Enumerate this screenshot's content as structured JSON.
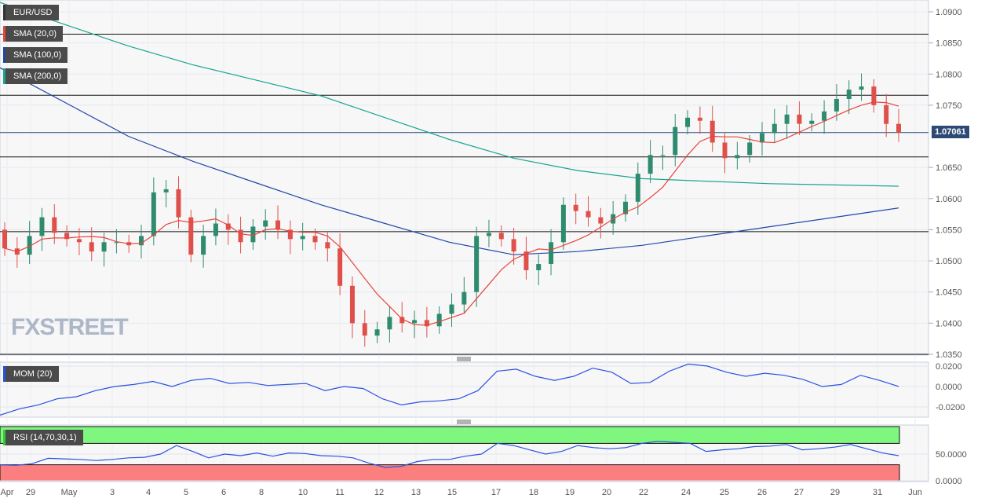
{
  "legend": {
    "symbol": "EUR/USD",
    "sma20": "SMA (20,0)",
    "sma100": "SMA (100,0)",
    "sma200": "SMA (200,0)",
    "mom": "MOM (20)",
    "rsi": "RSI (14,70,30,1)"
  },
  "colors": {
    "up": "#2e8b6e",
    "down": "#e0504a",
    "sma20": "#e8443a",
    "sma100": "#2046a8",
    "sma200": "#1aa58f",
    "mom": "#2a52e0",
    "rsi": "#2a52e0",
    "price_tag": "#2c4a75",
    "rsi_high": "#7ff77f",
    "rsi_low": "#fc7f7f"
  },
  "watermark": "FXSTREET",
  "chart_data": {
    "type": "candlestick",
    "title": "EUR/USD",
    "ylim": [
      1.035,
      1.09
    ],
    "y_ticks": [
      "1.0900",
      "1.0850",
      "1.0800",
      "1.0750",
      "1.0650",
      "1.0600",
      "1.0550",
      "1.0500",
      "1.0450",
      "1.0400",
      "1.0350"
    ],
    "last_price": "1.07061",
    "horizontal_levels": [
      1.0864,
      1.0766,
      1.07061,
      1.0667,
      1.0547,
      1.035
    ],
    "x_labels": [
      "Apr",
      "29",
      "May",
      "3",
      "4",
      "5",
      "6",
      "8",
      "10",
      "11",
      "12",
      "13",
      "15",
      "17",
      "18",
      "19",
      "20",
      "22",
      "24",
      "25",
      "26",
      "27",
      "29",
      "31",
      "Jun"
    ],
    "closes": [
      1.052,
      1.051,
      1.054,
      1.057,
      1.0545,
      1.0535,
      1.053,
      1.0515,
      1.053,
      1.053,
      1.0525,
      1.054,
      1.061,
      1.0615,
      1.057,
      1.051,
      1.054,
      1.056,
      1.055,
      1.053,
      1.0555,
      1.0565,
      1.055,
      1.0535,
      1.054,
      1.053,
      1.052,
      1.046,
      1.04,
      1.038,
      1.039,
      1.041,
      1.04,
      1.0405,
      1.0395,
      1.0415,
      1.043,
      1.045,
      1.054,
      1.0545,
      1.0535,
      1.0515,
      1.0485,
      1.0495,
      1.053,
      1.059,
      1.058,
      1.057,
      1.056,
      1.0575,
      1.0595,
      1.064,
      1.067,
      1.067,
      1.0715,
      1.073,
      1.0725,
      1.069,
      1.0665,
      1.067,
      1.069,
      1.0705,
      1.072,
      1.0735,
      1.072,
      1.0725,
      1.074,
      1.076,
      1.0775,
      1.078,
      1.075,
      1.072,
      1.0706
    ],
    "sma100": [
      1.081,
      1.0755,
      1.07,
      1.066,
      1.0625,
      1.059,
      1.056,
      1.053,
      1.051,
      1.0515,
      1.0525,
      1.054,
      1.0555,
      1.057,
      1.0585
    ],
    "sma200": [
      1.0915,
      1.088,
      1.0845,
      1.0815,
      1.079,
      1.0765,
      1.073,
      1.0695,
      1.0665,
      1.0645,
      1.0632,
      1.0628,
      1.0624,
      1.0622,
      1.062
    ],
    "mom": {
      "ylim": [
        -0.03,
        0.025
      ],
      "ticks": [
        "0.0200",
        "0.0000",
        "-0.0200"
      ],
      "values": [
        -0.028,
        -0.022,
        -0.018,
        -0.012,
        -0.01,
        -0.004,
        0.0,
        0.002,
        0.005,
        0.0,
        0.006,
        0.008,
        0.003,
        0.004,
        0.001,
        0.002,
        0.003,
        -0.004,
        0.0,
        -0.002,
        -0.012,
        -0.018,
        -0.015,
        -0.014,
        -0.012,
        -0.004,
        0.015,
        0.017,
        0.01,
        0.006,
        0.01,
        0.018,
        0.014,
        0.003,
        0.004,
        0.015,
        0.022,
        0.02,
        0.014,
        0.01,
        0.013,
        0.011,
        0.007,
        0.0,
        0.002,
        0.011,
        0.006,
        0.0
      ]
    },
    "rsi": {
      "ylim": [
        0,
        100
      ],
      "overbought": 70,
      "oversold": 30,
      "ticks": [
        "50.0000",
        "0.0000"
      ],
      "values": [
        30,
        29,
        32,
        42,
        41,
        40,
        38,
        40,
        43,
        44,
        50,
        66,
        55,
        43,
        50,
        47,
        52,
        46,
        52,
        51,
        47,
        46,
        43,
        33,
        25,
        27,
        36,
        40,
        40,
        46,
        50,
        70,
        66,
        58,
        50,
        55,
        66,
        62,
        60,
        62,
        70,
        74,
        72,
        70,
        55,
        58,
        60,
        64,
        65,
        68,
        58,
        60,
        63,
        68,
        60,
        52,
        47
      ]
    }
  }
}
